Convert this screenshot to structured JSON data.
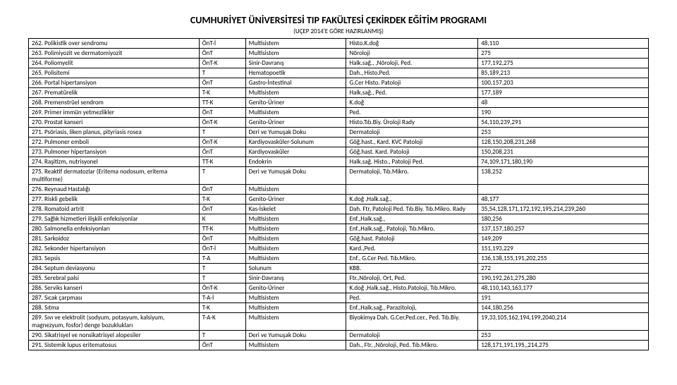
{
  "header": {
    "title": "CUMHURİYET ÜNİVERSİTESİ TIP FAKÜLTESİ ÇEKİRDEK EĞİTİM PROGRAMI",
    "subtitle": "(UÇEP 2014'E GÖRE HAZIRLANMIŞ)"
  },
  "rows": [
    {
      "n": "262.",
      "name": "Polikistik over sendromu",
      "c2": "ÖnT-İ",
      "c3": "Multisistem",
      "c4": "Histo.K.doğ",
      "c5": "48,110"
    },
    {
      "n": "263.",
      "name": "Polimiyozit ve dermatomiyozit",
      "c2": "ÖnT",
      "c3": "Multisistem",
      "c4": "Nöroloji",
      "c5": "275"
    },
    {
      "n": "264.",
      "name": "Poliomyelit",
      "c2": "ÖnT-K",
      "c3": "Sinir-Davranış",
      "c4": "Halk.sağ., ,Nöroloji, Ped.",
      "c5": "177,192,275"
    },
    {
      "n": "265.",
      "name": "Polisitemi",
      "c2": "T",
      "c3": "Hematopoetik",
      "c4": "Dah., Histo.Ped.",
      "c5": "85,189,213"
    },
    {
      "n": "266.",
      "name": "Portal hipertansiyon",
      "c2": "ÖnT",
      "c3": "Gastro-İntestinal",
      "c4": "G.Cer Histo. Patoloji",
      "c5": "100,157,203"
    },
    {
      "n": "267.",
      "name": "Prematürelik",
      "c2": "T-K",
      "c3": "Multisistem",
      "c4": "Halk.sağ., Ped.",
      "c5": "177,189"
    },
    {
      "n": "268.",
      "name": "Premenstrüel sendrom",
      "c2": "TT-K",
      "c3": "Genito-Üriner",
      "c4": "K.doğ",
      "c5": "48"
    },
    {
      "n": "269.",
      "name": "Primer immün yetmezlikler",
      "c2": "ÖnT",
      "c3": "Multisistem",
      "c4": "Ped.",
      "c5": "190"
    },
    {
      "n": "270.",
      "name": "Prostat kanseri",
      "c2": "ÖnT-K",
      "c3": "Genito-Üriner",
      "c4": "Histo.Tıb.Biy. Üroloji Rady",
      "c5": "54,110,239,291"
    },
    {
      "n": "271.",
      "name": "Psöriasis, liken planus, pityriasis rosea",
      "c2": "T",
      "c3": "Deri ve Yumuşak Doku",
      "c4": "Dermatoloji",
      "c5": "253"
    },
    {
      "n": "272.",
      "name": "Pulmoner emboli",
      "c2": "ÖnT-K",
      "c3": "Kardiyovasküler-Solunum",
      "c4": "Göğ.hast., Kard. KVC Patoloji",
      "c5": "128,150,208,231,268"
    },
    {
      "n": "273.",
      "name": "Pulmoner hipertansiyon",
      "c2": "ÖnT",
      "c3": "Kardiyovasküler",
      "c4": "Göğ.hast. Kard. Patoloji",
      "c5": "150,208,231"
    },
    {
      "n": "274.",
      "name": "Raşitizm, nutrisyonel",
      "c2": "TT-K",
      "c3": "Endokrin",
      "c4": "Halk.sağ. Histo., Patoloji Ped.",
      "c5": "74,109,171,180,190"
    },
    {
      "n": "275.",
      "name": "Reaktif dermatozlar (Eritema nodosum, eritema multiforme)",
      "c2": "T",
      "c3": "Deri ve Yumuşak Doku",
      "c4": "Dermatoloji, Tıb.Mikro.",
      "c5": "138,252",
      "wrap": true
    },
    {
      "n": "276.",
      "name": "Reynaud Hastalığı",
      "c2": "ÖnT",
      "c3": "Multisistem",
      "c4": "",
      "c5": ""
    },
    {
      "n": "277.",
      "name": "Riskli gebelik",
      "c2": "T-K",
      "c3": "Genito-Üriner",
      "c4": "K.doğ ,Halk.sağ.,",
      "c5": "48,177"
    },
    {
      "n": "278.",
      "name": "Romatoid artrit",
      "c2": "ÖnT",
      "c3": "Kas-İskelet",
      "c4": "Dah. Ftr, Patoloji Ped. Tıb.Biy. Tıb.Mikro. Rady",
      "c5": "35,54,128,171,172,192,195,214,239,260",
      "wrap4": true
    },
    {
      "n": "279.",
      "name": "Sağlık hizmetleri ilişkili enfeksiyonlar",
      "c2": "K",
      "c3": "Multisistem",
      "c4": "Enf.,Halk.sağ.,",
      "c5": "180,256"
    },
    {
      "n": "280.",
      "name": "Salmonella enfeksiyonları",
      "c2": "TT-K",
      "c3": "Multisistem",
      "c4": "Enf.,Halk.sağ., Patoloji, Tıb.Mikro.",
      "c5": "137,157,180,257"
    },
    {
      "n": "281.",
      "name": "Sarkoidoz",
      "c2": "ÖnT",
      "c3": "Multisistem",
      "c4": "Göğ.hast. Patoloji",
      "c5": "149,209"
    },
    {
      "n": "282.",
      "name": "Sekonder hipertansiyon",
      "c2": "ÖnT-İ",
      "c3": "Multisistem",
      "c4": "Kard.,Ped.",
      "c5": "151,193,229"
    },
    {
      "n": "283.",
      "name": "Sepsis",
      "c2": "T-A",
      "c3": "Multisistem",
      "c4": "Enf., G.Cer Ped. Tıb.Mikro.",
      "c5": "136,138,155,191,202,255"
    },
    {
      "n": "284.",
      "name": "Septum deviasyonu",
      "c2": "T",
      "c3": "Solunum",
      "c4": "KBB.",
      "c5": "272"
    },
    {
      "n": "285.",
      "name": "Serebral palsi",
      "c2": "T",
      "c3": "Sinir-Davranış",
      "c4": "Ftr.,Nöroloji, Ort, Ped.",
      "c5": "190,192,261,275,280"
    },
    {
      "n": "286.",
      "name": "Serviks kanseri",
      "c2": "ÖnT-K",
      "c3": "Genito-Üriner",
      "c4": "K.doğ ,Halk.sağ., Histo.Patoloji, Tıb.Mikro.",
      "c5": "48,110,143,163,177",
      "wrap4": true
    },
    {
      "n": "287.",
      "name": "Sıcak çarpması",
      "c2": "T-A-İ",
      "c3": "Multisistem",
      "c4": "Ped.",
      "c5": "191"
    },
    {
      "n": "288.",
      "name": "Sıtma",
      "c2": "T-K",
      "c3": "Multisistem",
      "c4": "Enf.,Halk.sağ., Parazitoloji,",
      "c5": "144,180,256"
    },
    {
      "n": "289.",
      "name": "Sıvı ve elektrolit (sodyum, potasyum, kalsiyum, magnezyum, fosfor) denge bozuklukları",
      "c2": "T-A-K",
      "c3": "Multisistem",
      "c4": "Biyokimya Dah. G.Cer,Ped.cer., Ped. Tıb.Biy.",
      "c5": "19,33,105,162,194,199,2040,214",
      "wrap": true,
      "wrap4": true
    },
    {
      "n": "290.",
      "name": "Sikatrisyel ve nonsikatrisyel alopesiler",
      "c2": "T",
      "c3": "Deri ve Yumuşak Doku",
      "c4": "Dermatoloji",
      "c5": "253"
    },
    {
      "n": "291.",
      "name": "Sistemik lupus eritematosus",
      "c2": "ÖnT",
      "c3": "Multisistem",
      "c4": "Dah., Ftr, ,Nöroloji, Ped. Tıb.Mikro.",
      "c5": "128,171,191,195,,214,275"
    }
  ]
}
